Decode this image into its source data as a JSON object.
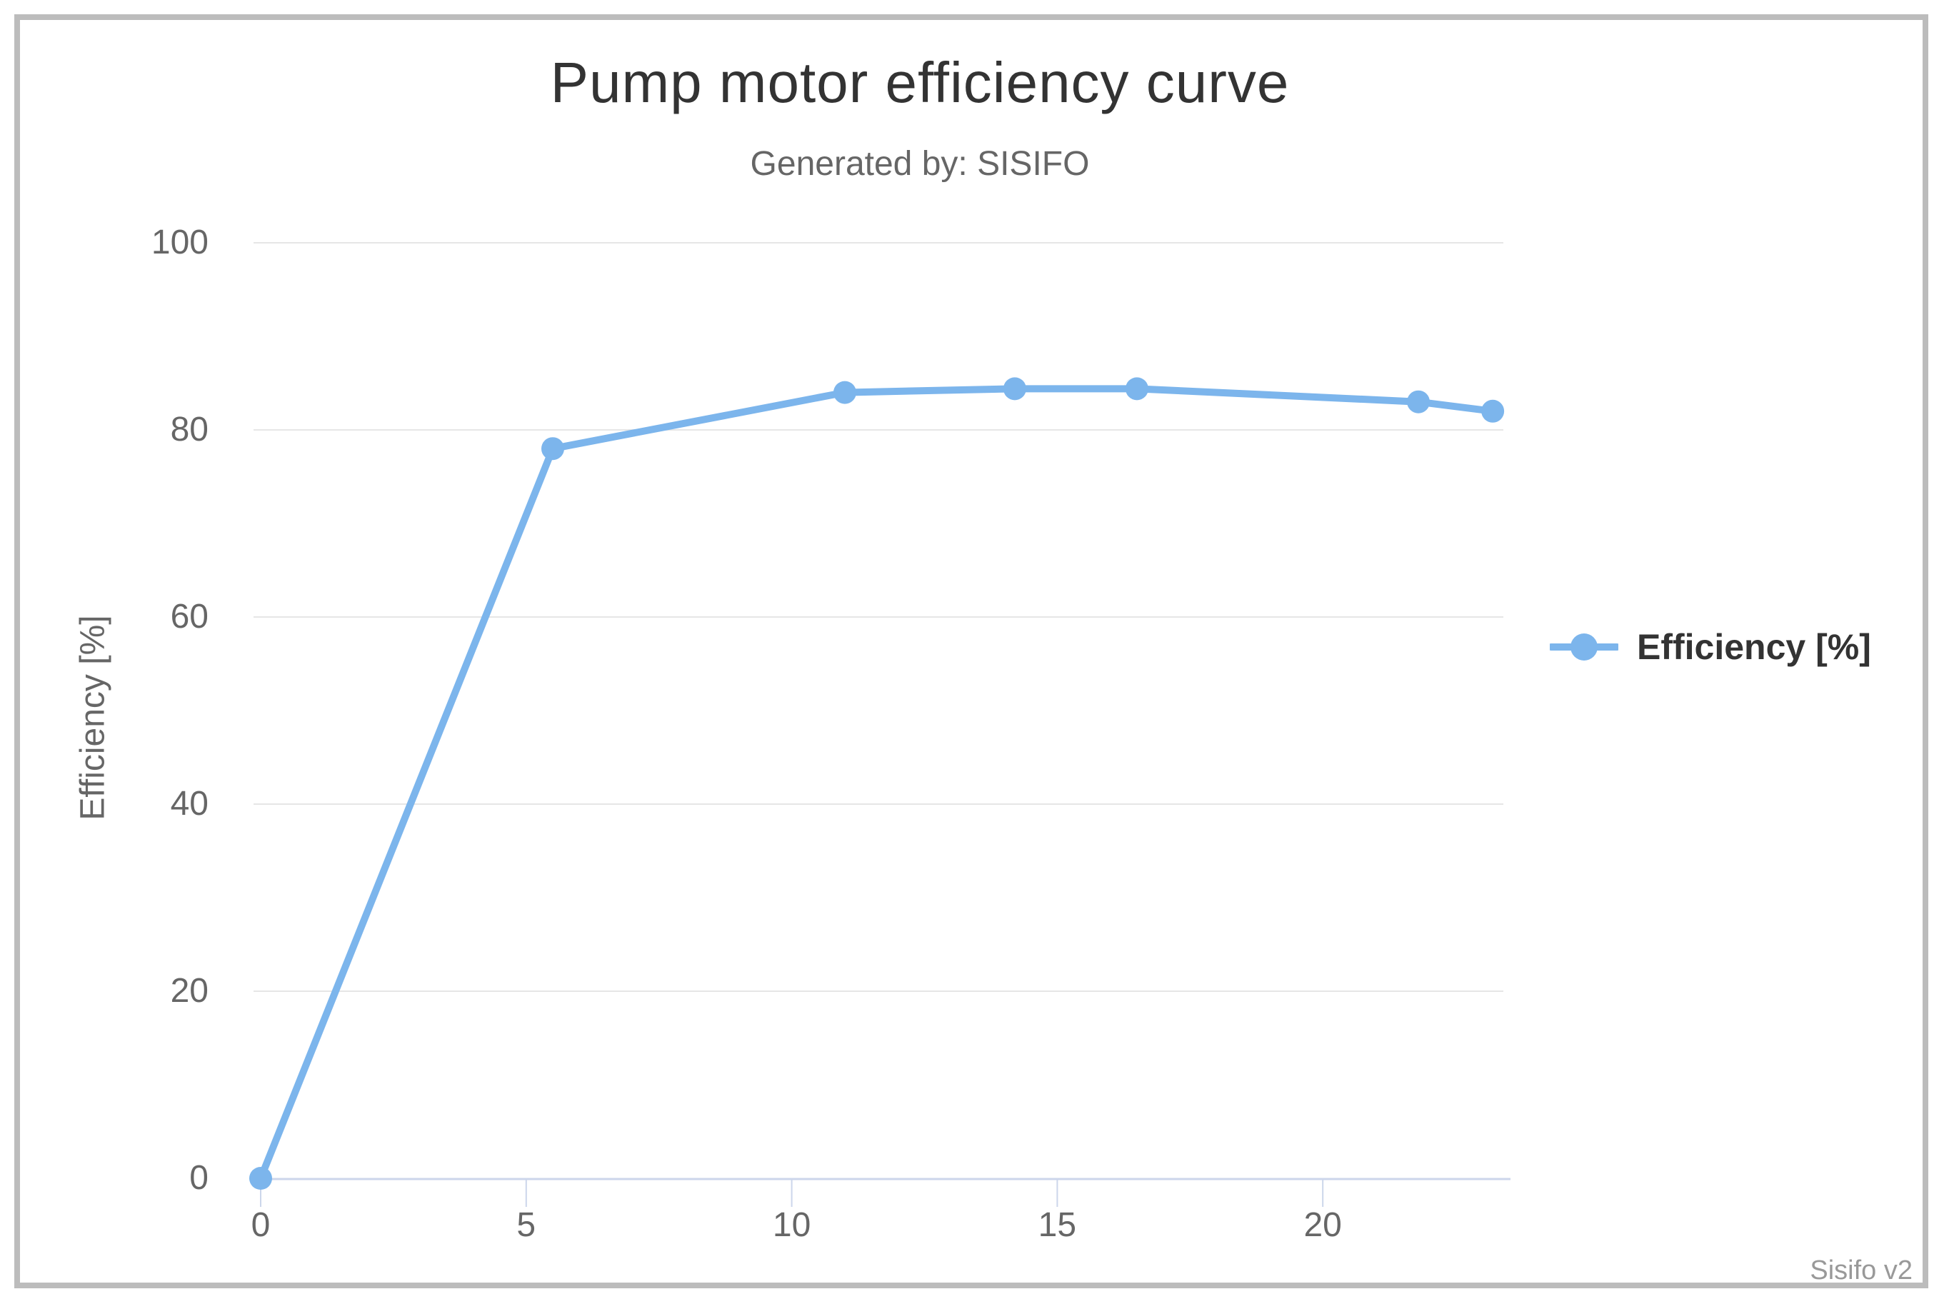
{
  "page": {
    "credits_label": "Sisifo v2"
  },
  "colors": {
    "series": "#7cb5ec",
    "gridline": "#e6e6e6",
    "axis_line": "#ccd6eb",
    "tick_mark": "#ccd6eb",
    "tick_label": "#666666",
    "title": "#333333",
    "subtitle": "#666666",
    "legend_text": "#333333",
    "credits": "#999999",
    "frame_border": "#bcbcbc",
    "background": "#ffffff"
  },
  "chart_data": {
    "type": "line",
    "title": "Pump motor efficiency curve",
    "subtitle": "Generated by: SISIFO",
    "xlabel": "",
    "ylabel": "Efficiency [%]",
    "xlim": [
      0,
      23.4
    ],
    "ylim": [
      0,
      100
    ],
    "xticks": [
      0,
      5,
      10,
      15,
      20
    ],
    "yticks": [
      0,
      20,
      40,
      60,
      80,
      100
    ],
    "grid": "horizontal-only",
    "legend_position": "right-middle",
    "credits": "Sisifo v2",
    "series": [
      {
        "name": "Efficiency [%]",
        "color": "#7cb5ec",
        "marker": "circle",
        "x": [
          0,
          5.5,
          11,
          14.2,
          16.5,
          21.8,
          23.2
        ],
        "values": [
          0,
          78,
          84,
          84.4,
          84.4,
          83,
          82
        ]
      }
    ]
  }
}
